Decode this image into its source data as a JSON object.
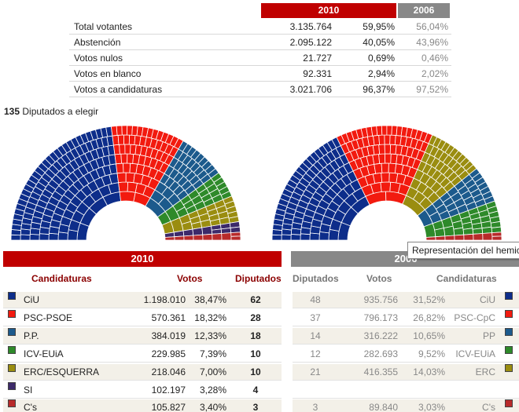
{
  "summary": {
    "header_2010": "2010",
    "header_2006": "2006",
    "rows": [
      {
        "label": "Total votantes",
        "votes": "3.135.764",
        "pct": "59,95%",
        "pct2006": "56,04%"
      },
      {
        "label": "Abstención",
        "votes": "2.095.122",
        "pct": "40,05%",
        "pct2006": "43,96%"
      },
      {
        "label": "Votos nulos",
        "votes": "21.727",
        "pct": "0,69%",
        "pct2006": "0,46%"
      },
      {
        "label": "Votos en blanco",
        "votes": "92.331",
        "pct": "2,94%",
        "pct2006": "2,02%"
      },
      {
        "label": "Votos a candidaturas",
        "votes": "3.021.706",
        "pct": "96,37%",
        "pct2006": "97,52%"
      }
    ]
  },
  "seats": {
    "count": "135",
    "label": "Diputados a elegir"
  },
  "tooltip": "Representación del hemiciclo",
  "colors": {
    "red_header": "#c00000",
    "grey_header": "#888888"
  },
  "table": {
    "header_2010": "2010",
    "header_2006": "2006",
    "col_candidaturas": "Candidaturas",
    "col_votos": "Votos",
    "col_diputados": "Diputados",
    "r_col_diputados": "Diputados",
    "r_col_votos": "Votos",
    "r_col_candidaturas": "Candidaturas"
  },
  "chart_data": [
    {
      "type": "parliament-hemicycle",
      "title": "2010",
      "total_seats": 135,
      "parties": [
        {
          "name": "CiU",
          "seats": 62,
          "color": "#0d2d8a"
        },
        {
          "name": "PSC-PSOE",
          "seats": 28,
          "color": "#f21a0f"
        },
        {
          "name": "P.P.",
          "seats": 18,
          "color": "#1c5a8c"
        },
        {
          "name": "ICV-EUiA",
          "seats": 10,
          "color": "#2e8a2a"
        },
        {
          "name": "ERC/ESQUERRA",
          "seats": 10,
          "color": "#9a8d10"
        },
        {
          "name": "SI",
          "seats": 4,
          "color": "#3c2a6a"
        },
        {
          "name": "C's",
          "seats": 3,
          "color": "#b82a2a"
        }
      ]
    },
    {
      "type": "parliament-hemicycle",
      "title": "2006",
      "total_seats": 135,
      "parties": [
        {
          "name": "CiU",
          "seats": 48,
          "color": "#0d2d8a"
        },
        {
          "name": "PSC-CpC",
          "seats": 37,
          "color": "#f21a0f"
        },
        {
          "name": "ERC",
          "seats": 21,
          "color": "#9a8d10"
        },
        {
          "name": "PP",
          "seats": 14,
          "color": "#1c5a8c"
        },
        {
          "name": "ICV-EUiA",
          "seats": 12,
          "color": "#2e8a2a"
        },
        {
          "name": "C's",
          "seats": 3,
          "color": "#b82a2a"
        }
      ]
    }
  ],
  "results_2010": [
    {
      "name": "CiU",
      "votes": "1.198.010",
      "pct": "38,47%",
      "seats": "62",
      "color": "#0d2d8a"
    },
    {
      "name": "PSC-PSOE",
      "votes": "570.361",
      "pct": "18,32%",
      "seats": "28",
      "color": "#f21a0f"
    },
    {
      "name": "P.P.",
      "votes": "384.019",
      "pct": "12,33%",
      "seats": "18",
      "color": "#1c5a8c"
    },
    {
      "name": "ICV-EUiA",
      "votes": "229.985",
      "pct": "7,39%",
      "seats": "10",
      "color": "#2e8a2a"
    },
    {
      "name": "ERC/ESQUERRA",
      "votes": "218.046",
      "pct": "7,00%",
      "seats": "10",
      "color": "#9a8d10"
    },
    {
      "name": "SI",
      "votes": "102.197",
      "pct": "3,28%",
      "seats": "4",
      "color": "#3c2a6a"
    },
    {
      "name": "C's",
      "votes": "105.827",
      "pct": "3,40%",
      "seats": "3",
      "color": "#b82a2a"
    }
  ],
  "results_2006": [
    {
      "name": "CiU",
      "votes": "935.756",
      "pct": "31,52%",
      "seats": "48",
      "color": "#0d2d8a"
    },
    {
      "name": "PSC-CpC",
      "votes": "796.173",
      "pct": "26,82%",
      "seats": "37",
      "color": "#f21a0f"
    },
    {
      "name": "PP",
      "votes": "316.222",
      "pct": "10,65%",
      "seats": "14",
      "color": "#1c5a8c"
    },
    {
      "name": "ICV-EUiA",
      "votes": "282.693",
      "pct": "9,52%",
      "seats": "12",
      "color": "#2e8a2a"
    },
    {
      "name": "ERC",
      "votes": "416.355",
      "pct": "14,03%",
      "seats": "21",
      "color": "#9a8d10"
    },
    {
      "name": "",
      "votes": "",
      "pct": "",
      "seats": "",
      "color": ""
    },
    {
      "name": "C's",
      "votes": "89.840",
      "pct": "3,03%",
      "seats": "3",
      "color": "#b82a2a"
    }
  ]
}
